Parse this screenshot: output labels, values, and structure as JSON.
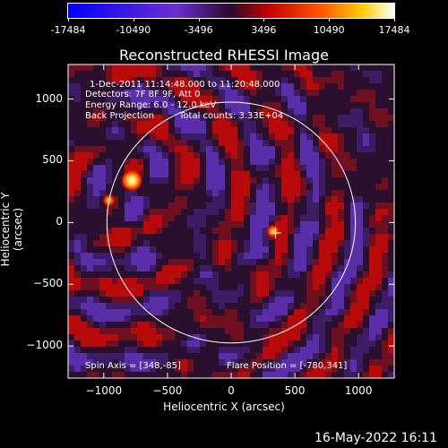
{
  "colorbar": {
    "tick_labels": [
      "-17484",
      "-10490",
      "-3496",
      "3496",
      "10490",
      "17484"
    ]
  },
  "header": {
    "title": "Reconstructed RHESSI Image"
  },
  "annotations": {
    "time_range": "1-Dec-2011 11:14:48.000 to 11:20:48.000",
    "detectors": "Detectors: 7F 8F 9F, Att 0",
    "energy": "Energy Range: 6.0 - 12.0 keV",
    "method": "Back Projection",
    "counts": "Total counts: 3.33E+04",
    "spin_axis": "Spin Axis = [348,-85]",
    "flare_position": "Flare Position = [-780,341]"
  },
  "footer": {
    "date": "16-May-2022 16:11"
  },
  "colors": {
    "background": "#000000",
    "axes": "#ffffff"
  },
  "chart_data": {
    "type": "heatmap",
    "title": "Reconstructed RHESSI Image",
    "xlabel": "Heliocentric X (arcsec)",
    "ylabel": "Heliocentric Y (arcsec)",
    "xlim": [
      -1280,
      1280
    ],
    "ylim": [
      -1260,
      1280
    ],
    "x_ticks": [
      -1000,
      -500,
      0,
      500,
      1000
    ],
    "y_ticks": [
      -1000,
      -500,
      0,
      500,
      1000
    ],
    "x_tick_labels": [
      "−1000",
      "−500",
      "0",
      "500",
      "1000"
    ],
    "y_tick_labels": [
      "−1000",
      "−500",
      "0",
      "500",
      "1000"
    ],
    "colorbar_range": [
      -17484,
      17484
    ],
    "sources": [
      {
        "x": -780,
        "y": 341
      },
      {
        "x": -960,
        "y": 180
      },
      {
        "x": 330,
        "y": -70
      }
    ],
    "solar_limb_radius": 975,
    "marker": {
      "x": 348,
      "y": -85
    }
  }
}
